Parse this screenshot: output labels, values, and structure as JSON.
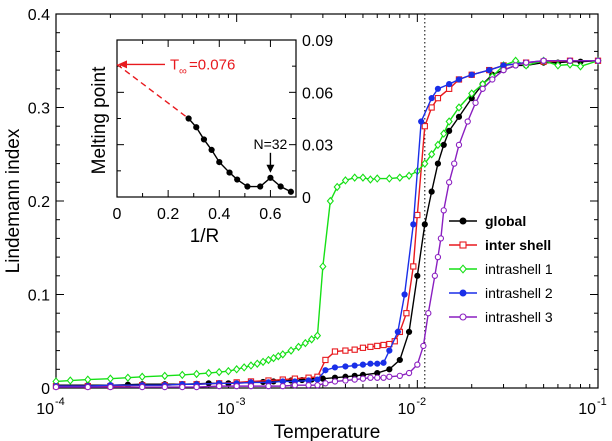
{
  "chart_data": [
    {
      "type": "line",
      "xlabel": "Temperature",
      "ylabel": "Lindemann index",
      "xscale": "log",
      "xlim": [
        0.0001,
        0.1
      ],
      "ylim": [
        0,
        0.4
      ],
      "xticks": [
        0.0001,
        0.001,
        0.01,
        0.1
      ],
      "xtick_labels": [
        {
          "base": "10",
          "exp": "-4"
        },
        {
          "base": "10",
          "exp": "-3"
        },
        {
          "base": "10",
          "exp": "-2"
        },
        {
          "base": "10",
          "exp": "-1"
        }
      ],
      "yticks": [
        0,
        0.1,
        0.2,
        0.3,
        0.4
      ],
      "ytick_labels": [
        "0",
        "0.1",
        "0.2",
        "0.3",
        "0.4"
      ],
      "vline": 0.011,
      "legend_position": "center-right",
      "series": [
        {
          "name": "global",
          "color": "#000000",
          "marker": "filled-circle",
          "points": [
            [
              0.0001,
              0.003
            ],
            [
              0.00015,
              0.003
            ],
            [
              0.0002,
              0.003
            ],
            [
              0.00025,
              0.0035
            ],
            [
              0.0003,
              0.004
            ],
            [
              0.0004,
              0.004
            ],
            [
              0.0005,
              0.004
            ],
            [
              0.0006,
              0.0045
            ],
            [
              0.0007,
              0.005
            ],
            [
              0.0008,
              0.005
            ],
            [
              0.0009,
              0.005
            ],
            [
              0.001,
              0.0055
            ],
            [
              0.0012,
              0.006
            ],
            [
              0.0014,
              0.0065
            ],
            [
              0.0016,
              0.007
            ],
            [
              0.0018,
              0.0075
            ],
            [
              0.002,
              0.008
            ],
            [
              0.0023,
              0.0085
            ],
            [
              0.0026,
              0.009
            ],
            [
              0.003,
              0.01
            ],
            [
              0.0035,
              0.011
            ],
            [
              0.004,
              0.012
            ],
            [
              0.0045,
              0.013
            ],
            [
              0.005,
              0.014
            ],
            [
              0.006,
              0.016
            ],
            [
              0.007,
              0.02
            ],
            [
              0.008,
              0.03
            ],
            [
              0.009,
              0.06
            ],
            [
              0.01,
              0.12
            ],
            [
              0.011,
              0.175
            ],
            [
              0.012,
              0.21
            ],
            [
              0.013,
              0.24
            ],
            [
              0.014,
              0.26
            ],
            [
              0.015,
              0.275
            ],
            [
              0.017,
              0.29
            ],
            [
              0.02,
              0.31
            ],
            [
              0.023,
              0.325
            ],
            [
              0.026,
              0.335
            ],
            [
              0.03,
              0.34
            ],
            [
              0.035,
              0.345
            ],
            [
              0.04,
              0.345
            ],
            [
              0.05,
              0.348
            ],
            [
              0.06,
              0.348
            ],
            [
              0.07,
              0.349
            ],
            [
              0.08,
              0.349
            ],
            [
              0.1,
              0.35
            ]
          ]
        },
        {
          "name": "inter shell",
          "color": "#e8191e",
          "marker": "open-square",
          "points": [
            [
              0.0001,
              0.002
            ],
            [
              0.00015,
              0.002
            ],
            [
              0.0002,
              0.002
            ],
            [
              0.0003,
              0.003
            ],
            [
              0.0004,
              0.003
            ],
            [
              0.0005,
              0.004
            ],
            [
              0.0006,
              0.004
            ],
            [
              0.0008,
              0.005
            ],
            [
              0.001,
              0.006
            ],
            [
              0.0012,
              0.007
            ],
            [
              0.0015,
              0.008
            ],
            [
              0.0018,
              0.009
            ],
            [
              0.0021,
              0.01
            ],
            [
              0.0025,
              0.011
            ],
            [
              0.0028,
              0.012
            ],
            [
              0.0031,
              0.03
            ],
            [
              0.0035,
              0.039
            ],
            [
              0.004,
              0.04
            ],
            [
              0.0045,
              0.041
            ],
            [
              0.005,
              0.043
            ],
            [
              0.0055,
              0.044
            ],
            [
              0.006,
              0.045
            ],
            [
              0.0065,
              0.046
            ],
            [
              0.007,
              0.047
            ],
            [
              0.0075,
              0.05
            ],
            [
              0.008,
              0.06
            ],
            [
              0.0087,
              0.08
            ],
            [
              0.0095,
              0.13
            ],
            [
              0.01,
              0.185
            ],
            [
              0.011,
              0.28
            ],
            [
              0.012,
              0.3
            ],
            [
              0.013,
              0.31
            ],
            [
              0.015,
              0.32
            ],
            [
              0.017,
              0.33
            ],
            [
              0.02,
              0.335
            ],
            [
              0.025,
              0.34
            ],
            [
              0.03,
              0.345
            ],
            [
              0.04,
              0.348
            ],
            [
              0.05,
              0.349
            ],
            [
              0.07,
              0.35
            ],
            [
              0.1,
              0.35
            ]
          ]
        },
        {
          "name": "intrashell 1",
          "color": "#16e016",
          "marker": "open-diamond",
          "points": [
            [
              0.0001,
              0.007
            ],
            [
              0.00012,
              0.008
            ],
            [
              0.00015,
              0.009
            ],
            [
              0.0002,
              0.01
            ],
            [
              0.00025,
              0.011
            ],
            [
              0.0003,
              0.012
            ],
            [
              0.0004,
              0.013
            ],
            [
              0.0005,
              0.014
            ],
            [
              0.0006,
              0.015
            ],
            [
              0.0007,
              0.016
            ],
            [
              0.0008,
              0.017
            ],
            [
              0.0009,
              0.018
            ],
            [
              0.001,
              0.02
            ],
            [
              0.0011,
              0.022
            ],
            [
              0.0012,
              0.024
            ],
            [
              0.0013,
              0.026
            ],
            [
              0.0014,
              0.028
            ],
            [
              0.0015,
              0.03
            ],
            [
              0.0016,
              0.032
            ],
            [
              0.0017,
              0.034
            ],
            [
              0.0018,
              0.036
            ],
            [
              0.002,
              0.04
            ],
            [
              0.0022,
              0.044
            ],
            [
              0.0024,
              0.048
            ],
            [
              0.0026,
              0.052
            ],
            [
              0.0028,
              0.056
            ],
            [
              0.003,
              0.13
            ],
            [
              0.0033,
              0.2
            ],
            [
              0.0036,
              0.215
            ],
            [
              0.004,
              0.222
            ],
            [
              0.0045,
              0.225
            ],
            [
              0.005,
              0.225
            ],
            [
              0.0055,
              0.223
            ],
            [
              0.006,
              0.224
            ],
            [
              0.007,
              0.224
            ],
            [
              0.008,
              0.225
            ],
            [
              0.009,
              0.227
            ],
            [
              0.01,
              0.232
            ],
            [
              0.011,
              0.24
            ],
            [
              0.012,
              0.25
            ],
            [
              0.013,
              0.26
            ],
            [
              0.014,
              0.272
            ],
            [
              0.015,
              0.285
            ],
            [
              0.017,
              0.3
            ],
            [
              0.02,
              0.315
            ],
            [
              0.023,
              0.325
            ],
            [
              0.026,
              0.333
            ],
            [
              0.03,
              0.345
            ],
            [
              0.035,
              0.35
            ],
            [
              0.04,
              0.345
            ],
            [
              0.05,
              0.35
            ],
            [
              0.06,
              0.345
            ],
            [
              0.07,
              0.346
            ],
            [
              0.08,
              0.344
            ],
            [
              0.1,
              0.35
            ]
          ]
        },
        {
          "name": "intrashell 2",
          "color": "#1a2fe8",
          "marker": "filled-circle",
          "points": [
            [
              0.0001,
              0.002
            ],
            [
              0.00015,
              0.002
            ],
            [
              0.0002,
              0.003
            ],
            [
              0.0003,
              0.003
            ],
            [
              0.0004,
              0.003
            ],
            [
              0.0005,
              0.004
            ],
            [
              0.0006,
              0.004
            ],
            [
              0.0008,
              0.005
            ],
            [
              0.001,
              0.005
            ],
            [
              0.0012,
              0.006
            ],
            [
              0.0015,
              0.006
            ],
            [
              0.0018,
              0.007
            ],
            [
              0.0021,
              0.007
            ],
            [
              0.0025,
              0.008
            ],
            [
              0.0028,
              0.009
            ],
            [
              0.0031,
              0.019
            ],
            [
              0.0035,
              0.022
            ],
            [
              0.004,
              0.023
            ],
            [
              0.0045,
              0.024
            ],
            [
              0.005,
              0.025
            ],
            [
              0.0055,
              0.026
            ],
            [
              0.006,
              0.026
            ],
            [
              0.0065,
              0.027
            ],
            [
              0.007,
              0.04
            ],
            [
              0.0078,
              0.06
            ],
            [
              0.0085,
              0.1
            ],
            [
              0.0095,
              0.175
            ],
            [
              0.0105,
              0.285
            ],
            [
              0.012,
              0.31
            ],
            [
              0.013,
              0.32
            ],
            [
              0.015,
              0.325
            ],
            [
              0.017,
              0.33
            ],
            [
              0.02,
              0.335
            ],
            [
              0.025,
              0.34
            ],
            [
              0.03,
              0.345
            ],
            [
              0.04,
              0.348
            ],
            [
              0.05,
              0.35
            ],
            [
              0.07,
              0.35
            ],
            [
              0.1,
              0.35
            ]
          ]
        },
        {
          "name": "intrashell 3",
          "color": "#8a1fc0",
          "marker": "open-circle",
          "points": [
            [
              0.0001,
              0.001
            ],
            [
              0.00015,
              0.001
            ],
            [
              0.0002,
              0.001
            ],
            [
              0.0003,
              0.001
            ],
            [
              0.0004,
              0.001
            ],
            [
              0.0005,
              0.001
            ],
            [
              0.0006,
              0.001
            ],
            [
              0.0008,
              0.002
            ],
            [
              0.001,
              0.002
            ],
            [
              0.0012,
              0.002
            ],
            [
              0.0015,
              0.002
            ],
            [
              0.0018,
              0.002
            ],
            [
              0.0021,
              0.003
            ],
            [
              0.0025,
              0.003
            ],
            [
              0.0028,
              0.003
            ],
            [
              0.0031,
              0.005
            ],
            [
              0.0035,
              0.007
            ],
            [
              0.004,
              0.008
            ],
            [
              0.0045,
              0.009
            ],
            [
              0.005,
              0.01
            ],
            [
              0.0055,
              0.011
            ],
            [
              0.006,
              0.011
            ],
            [
              0.0065,
              0.011
            ],
            [
              0.007,
              0.012
            ],
            [
              0.008,
              0.013
            ],
            [
              0.009,
              0.016
            ],
            [
              0.01,
              0.025
            ],
            [
              0.0108,
              0.045
            ],
            [
              0.0115,
              0.08
            ],
            [
              0.0125,
              0.12
            ],
            [
              0.013,
              0.14
            ],
            [
              0.0135,
              0.16
            ],
            [
              0.014,
              0.19
            ],
            [
              0.015,
              0.22
            ],
            [
              0.016,
              0.24
            ],
            [
              0.017,
              0.26
            ],
            [
              0.019,
              0.285
            ],
            [
              0.021,
              0.305
            ],
            [
              0.023,
              0.32
            ],
            [
              0.026,
              0.33
            ],
            [
              0.03,
              0.34
            ],
            [
              0.035,
              0.345
            ],
            [
              0.04,
              0.348
            ],
            [
              0.05,
              0.35
            ],
            [
              0.07,
              0.35
            ],
            [
              0.1,
              0.35
            ]
          ]
        }
      ]
    },
    {
      "type": "line",
      "xlabel": "1/R",
      "ylabel": "Melting point",
      "xlim": [
        0,
        0.7
      ],
      "ylim": [
        0,
        0.09
      ],
      "xticks": [
        0,
        0.2,
        0.4,
        0.6
      ],
      "xtick_labels": [
        "0",
        "0.2",
        "0.4",
        "0.6"
      ],
      "yticks": [
        0,
        0.03,
        0.06,
        0.09
      ],
      "ytick_labels": [
        "0",
        "0.03",
        "0.06",
        "0.09"
      ],
      "series": [
        {
          "color": "#000000",
          "marker": "filled-circle",
          "points": [
            [
              0.28,
              0.045
            ],
            [
              0.31,
              0.04
            ],
            [
              0.34,
              0.033
            ],
            [
              0.37,
              0.027
            ],
            [
              0.4,
              0.02
            ],
            [
              0.44,
              0.014
            ],
            [
              0.47,
              0.01
            ],
            [
              0.51,
              0.006
            ],
            [
              0.56,
              0.006
            ],
            [
              0.6,
              0.011
            ],
            [
              0.64,
              0.006
            ],
            [
              0.68,
              0.003
            ]
          ]
        },
        {
          "color": "#e8191e",
          "style": "dashed",
          "points": [
            [
              0,
              0.076
            ],
            [
              0.28,
              0.045
            ]
          ]
        }
      ],
      "annotations": [
        {
          "id": "t_inf",
          "text_main": "T",
          "text_sub": "∞",
          "text_value": "=0.076",
          "color": "#e8191e",
          "arrow_to": [
            0,
            0.076
          ]
        },
        {
          "id": "n32",
          "text": "N=32",
          "color": "#000000",
          "arrow_to": [
            0.6,
            0.011
          ]
        }
      ]
    }
  ]
}
